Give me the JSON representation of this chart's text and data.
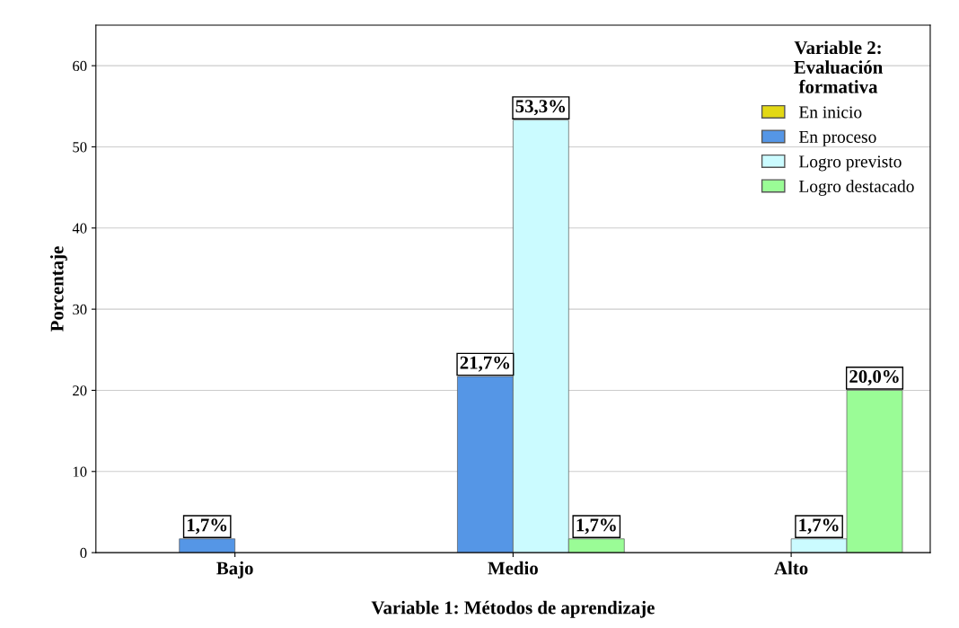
{
  "chart_data": {
    "type": "bar",
    "xlabel": "Variable 1: Métodos de aprendizaje",
    "ylabel": "Porcentaje",
    "legend_title": "Variable 2:\nEvaluación\nformativa",
    "categories": [
      "Bajo",
      "Medio",
      "Alto"
    ],
    "series": [
      {
        "name": "En inicio",
        "color": "#e3d814",
        "values": [
          null,
          null,
          null
        ],
        "value_labels": [
          null,
          null,
          null
        ]
      },
      {
        "name": "En proceso",
        "color": "#5596e6",
        "values": [
          1.7,
          21.7,
          null
        ],
        "value_labels": [
          "1,7%",
          "21,7%",
          null
        ]
      },
      {
        "name": "Logro previsto",
        "color": "#cbfbff",
        "values": [
          null,
          53.3,
          1.7
        ],
        "value_labels": [
          null,
          "53,3%",
          "1,7%"
        ]
      },
      {
        "name": "Logro destacado",
        "color": "#9afc96",
        "values": [
          null,
          1.7,
          20.0
        ],
        "value_labels": [
          null,
          "1,7%",
          "20,0%"
        ]
      }
    ],
    "ylim": [
      0,
      65
    ],
    "yticks": [
      0,
      10,
      20,
      30,
      40,
      50,
      60
    ],
    "grid": "y",
    "legend": "top right"
  }
}
